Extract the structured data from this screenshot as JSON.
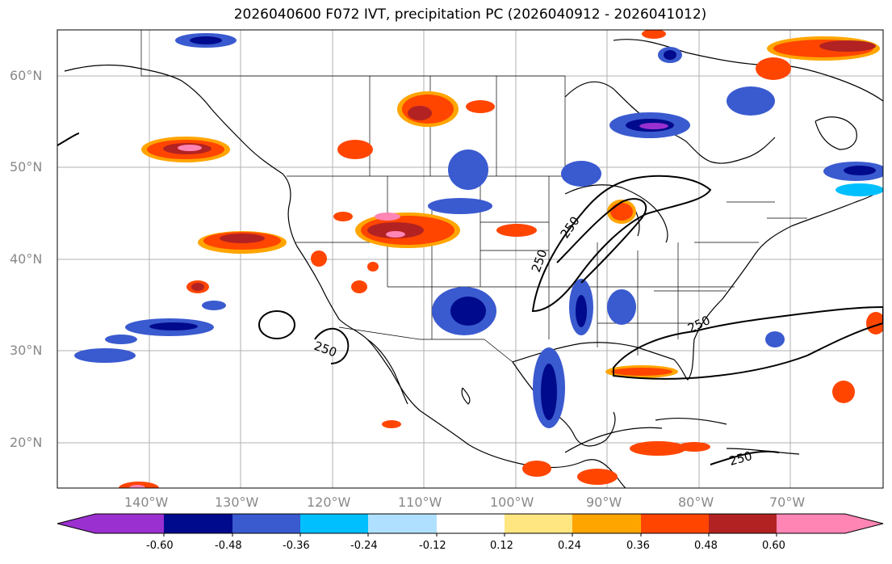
{
  "title": "2026040600 F072 IVT, precipitation PC (2026040912 - 2026041012)",
  "lat_labels": [
    "60°N",
    "50°N",
    "40°N",
    "30°N",
    "20°N"
  ],
  "lon_labels": [
    "140°W",
    "130°W",
    "120°W",
    "110°W",
    "100°W",
    "90°W",
    "80°W",
    "70°W"
  ],
  "contour_labels": [
    "250",
    "250",
    "250",
    "250",
    "250"
  ],
  "colorbar": {
    "labels": [
      "-0.60",
      "-0.48",
      "-0.36",
      "-0.24",
      "-0.12",
      "0.12",
      "0.24",
      "0.36",
      "0.48",
      "0.60"
    ],
    "colors": [
      "#9b30d0",
      "#000a8c",
      "#3a5acf",
      "#00bfff",
      "#b0e0ff",
      "#ffffff",
      "#ffe680",
      "#ffa500",
      "#ff4500",
      "#b22222",
      "#ff85b5"
    ]
  }
}
